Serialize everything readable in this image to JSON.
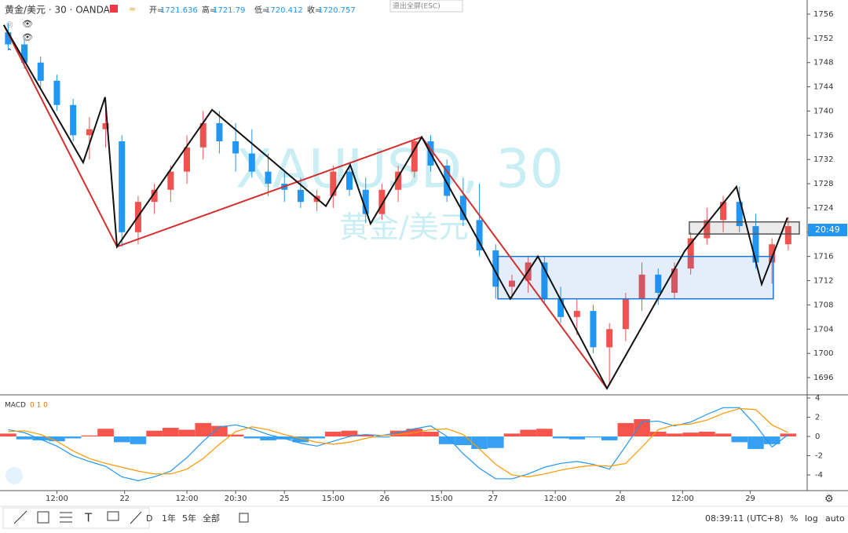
{
  "header": {
    "symbol": "黄金/美元 · 30 · OANDA",
    "ohlc": [
      {
        "label": "开=",
        "value": 1721.636
      },
      {
        "label": "高=",
        "value": 1721.79
      },
      {
        "label": "低=",
        "value": 1720.412
      },
      {
        "label": "收=",
        "value": 1720.757
      }
    ],
    "exit_button": "退出全屏(ESC)",
    "watermark_symbol": "XAUUSD, 30",
    "watermark_name": "黄金/美元",
    "countdown": "20:49"
  },
  "toolbar": {
    "ranges": [
      "D",
      "1年",
      "5年",
      "全部"
    ],
    "clock": "08:39:11 (UTC+8)",
    "options": [
      "%",
      "log",
      "auto"
    ]
  },
  "chart_data": [
    {
      "type": "candlestick",
      "up_color": "#ef5350",
      "down_color": "#2196f3",
      "xlim": [
        0,
        298
      ],
      "ylim": [
        1693.15,
        1758.33
      ],
      "xticks": [
        {
          "value": 21,
          "label": "12:00"
        },
        {
          "value": 46,
          "label": "22"
        },
        {
          "value": 69,
          "label": "12:00"
        },
        {
          "value": 87,
          "label": "20:30"
        },
        {
          "value": 105,
          "label": "25"
        },
        {
          "value": 123,
          "label": "15:00"
        },
        {
          "value": 142,
          "label": "26"
        },
        {
          "value": 163,
          "label": "15:00"
        },
        {
          "value": 182,
          "label": "27"
        },
        {
          "value": 205,
          "label": "12:00"
        },
        {
          "value": 229,
          "label": "28"
        },
        {
          "value": 252,
          "label": "12:00"
        },
        {
          "value": 277,
          "label": "29"
        }
      ],
      "yticks": [
        1696,
        1700,
        1704,
        1708,
        1712,
        1716,
        1720,
        1724,
        1728,
        1732,
        1736,
        1740,
        1744,
        1748,
        1752,
        1756
      ],
      "x": [
        3,
        9,
        15,
        21,
        27,
        33,
        39,
        45,
        51,
        57,
        63,
        69,
        75,
        81,
        87,
        93,
        99,
        105,
        111,
        117,
        123,
        129,
        135,
        141,
        147,
        153,
        159,
        165,
        171,
        177,
        183,
        189,
        195,
        201,
        207,
        213,
        219,
        225,
        231,
        237,
        243,
        249,
        255,
        261,
        267,
        273,
        279,
        285,
        291
      ],
      "open": [
        1753,
        1751,
        1748,
        1745,
        1741,
        1736,
        1737,
        1735,
        1720,
        1725,
        1727,
        1730,
        1734,
        1738,
        1735,
        1733,
        1730,
        1728,
        1727,
        1725,
        1726,
        1730,
        1727,
        1723,
        1727,
        1730,
        1735,
        1731,
        1726,
        1722,
        1717,
        1711,
        1712,
        1715,
        1709,
        1706,
        1707,
        1701,
        1704,
        1709,
        1713,
        1710,
        1714,
        1719,
        1722,
        1725,
        1721,
        1715,
        1718
      ],
      "high": [
        1754.5,
        1752,
        1749,
        1746,
        1742,
        1739,
        1742,
        1736,
        1726,
        1728,
        1731,
        1736,
        1740,
        1740,
        1738,
        1737,
        1733,
        1730,
        1729,
        1727,
        1731,
        1731.5,
        1729,
        1728,
        1731,
        1735.5,
        1736,
        1732,
        1729,
        1728,
        1718,
        1713,
        1716,
        1716,
        1711,
        1709,
        1708,
        1705,
        1710,
        1715,
        1714,
        1715,
        1720,
        1724,
        1726,
        1727.5,
        1723,
        1719,
        1722.5
      ],
      "low": [
        1750,
        1747,
        1744,
        1740,
        1735,
        1732,
        1734,
        1717.6,
        1718,
        1723,
        1725,
        1728,
        1732,
        1733,
        1730,
        1729,
        1726,
        1725,
        1724,
        1723.5,
        1724,
        1726,
        1721.5,
        1722,
        1725,
        1729,
        1730,
        1725,
        1721,
        1716,
        1709,
        1709,
        1710,
        1708,
        1705,
        1703,
        1700,
        1695,
        1702,
        1707,
        1708,
        1709,
        1713,
        1718,
        1720,
        1720,
        1714,
        1711.5,
        1717
      ],
      "close": [
        1751,
        1748,
        1745,
        1741,
        1736,
        1737,
        1738,
        1720,
        1725,
        1727,
        1730,
        1734,
        1738,
        1735,
        1733,
        1730,
        1728,
        1727,
        1725,
        1726,
        1730,
        1727,
        1723,
        1727,
        1730,
        1735,
        1731,
        1726,
        1722,
        1717,
        1711,
        1712,
        1715,
        1709,
        1706,
        1707,
        1701,
        1704,
        1709,
        1713,
        1710,
        1714,
        1719,
        1722,
        1725,
        1721,
        1715,
        1718,
        1721
      ],
      "lines": [
        {
          "color": "#d32f2f",
          "x": [
            1.4,
            43.2,
            155.7,
            224.1
          ],
          "values": [
            1754.2,
            1717.6,
            1735.7,
            1694.2
          ]
        },
        {
          "color": "#111111",
          "x": [
            1.4,
            30.7,
            38.8,
            43.2,
            78.3,
            120.3,
            129.3,
            136.8,
            155.7,
            188.4,
            198.6,
            224.1,
            252.8,
            271.9,
            281.2,
            290.7
          ],
          "values": [
            1754.2,
            1731.5,
            1742.3,
            1717.6,
            1740.2,
            1724.3,
            1731.1,
            1721.4,
            1735.7,
            1709.0,
            1716.0,
            1694.2,
            1716.9,
            1727.5,
            1711.4,
            1722.4
          ]
        }
      ],
      "boxes": [
        {
          "color": "#1976d2",
          "x": [
            183.8,
            285.5
          ],
          "values": [
            1716.0,
            1709.0
          ]
        },
        {
          "color": "#555555",
          "x": [
            254.5,
            295.1
          ],
          "values": [
            1721.7,
            1719.7
          ]
        }
      ]
    },
    {
      "type": "macd",
      "title": "MACD",
      "params": "0 1 0",
      "xlim": [
        0,
        298
      ],
      "ylim": [
        -5.63,
        4.33
      ],
      "yticks": [
        -4,
        -2,
        0,
        2,
        4
      ],
      "x": [
        3,
        9,
        15,
        21,
        27,
        33,
        39,
        45,
        51,
        57,
        63,
        69,
        75,
        81,
        87,
        93,
        99,
        105,
        111,
        117,
        123,
        129,
        135,
        141,
        147,
        153,
        159,
        165,
        171,
        177,
        183,
        189,
        195,
        201,
        207,
        213,
        219,
        225,
        231,
        237,
        243,
        249,
        255,
        261,
        267,
        273,
        279,
        285,
        291
      ],
      "series": [
        {
          "kind": "histogram",
          "color": "#f44336",
          "neg_color": "#2196f3",
          "values": [
            0.3,
            -0.3,
            -0.4,
            -0.5,
            -0.2,
            0.1,
            0.8,
            -0.6,
            -0.8,
            0.6,
            0.9,
            0.7,
            1.4,
            1.1,
            0.2,
            -0.2,
            -0.4,
            -0.3,
            -0.6,
            -0.2,
            0.5,
            0.6,
            0.2,
            -0.1,
            0.6,
            0.8,
            0.5,
            -0.8,
            -0.9,
            -1.3,
            -1.2,
            0.3,
            0.7,
            0.8,
            -0.2,
            -0.3,
            -0.1,
            -0.4,
            1.4,
            1.8,
            0.5,
            0.3,
            0.4,
            0.5,
            0.3,
            -0.6,
            -1.3,
            -0.8,
            0.3
          ]
        },
        {
          "kind": "line",
          "color": "#2196f3",
          "values": [
            0.7,
            0.4,
            -0.3,
            -1.0,
            -2.0,
            -2.6,
            -3.1,
            -4.2,
            -4.6,
            -4.2,
            -3.6,
            -2.2,
            -0.5,
            1.0,
            1.2,
            0.8,
            0.2,
            -0.2,
            -0.7,
            -1.0,
            -0.5,
            0.0,
            0.2,
            0.1,
            0.4,
            0.8,
            1.1,
            0.0,
            -1.8,
            -3.3,
            -4.4,
            -4.4,
            -3.9,
            -3.2,
            -2.8,
            -2.6,
            -2.9,
            -3.4,
            -1.0,
            1.5,
            1.6,
            1.1,
            1.5,
            2.3,
            3.0,
            3.0,
            1.2,
            -1.1,
            0.2
          ]
        },
        {
          "kind": "line",
          "color": "#ff9800",
          "values": [
            0.5,
            0.6,
            0.2,
            -0.5,
            -1.5,
            -2.3,
            -2.8,
            -3.2,
            -3.6,
            -3.9,
            -3.9,
            -3.4,
            -2.3,
            -0.8,
            0.5,
            1.0,
            0.7,
            0.2,
            -0.2,
            -0.6,
            -0.8,
            -0.6,
            -0.2,
            0.1,
            0.2,
            0.4,
            0.7,
            0.8,
            0.2,
            -1.3,
            -2.9,
            -4.0,
            -4.2,
            -3.9,
            -3.5,
            -3.2,
            -3.0,
            -3.1,
            -2.8,
            -1.1,
            0.7,
            1.2,
            1.3,
            1.7,
            2.4,
            2.9,
            2.8,
            1.2,
            0.4
          ]
        }
      ]
    }
  ]
}
